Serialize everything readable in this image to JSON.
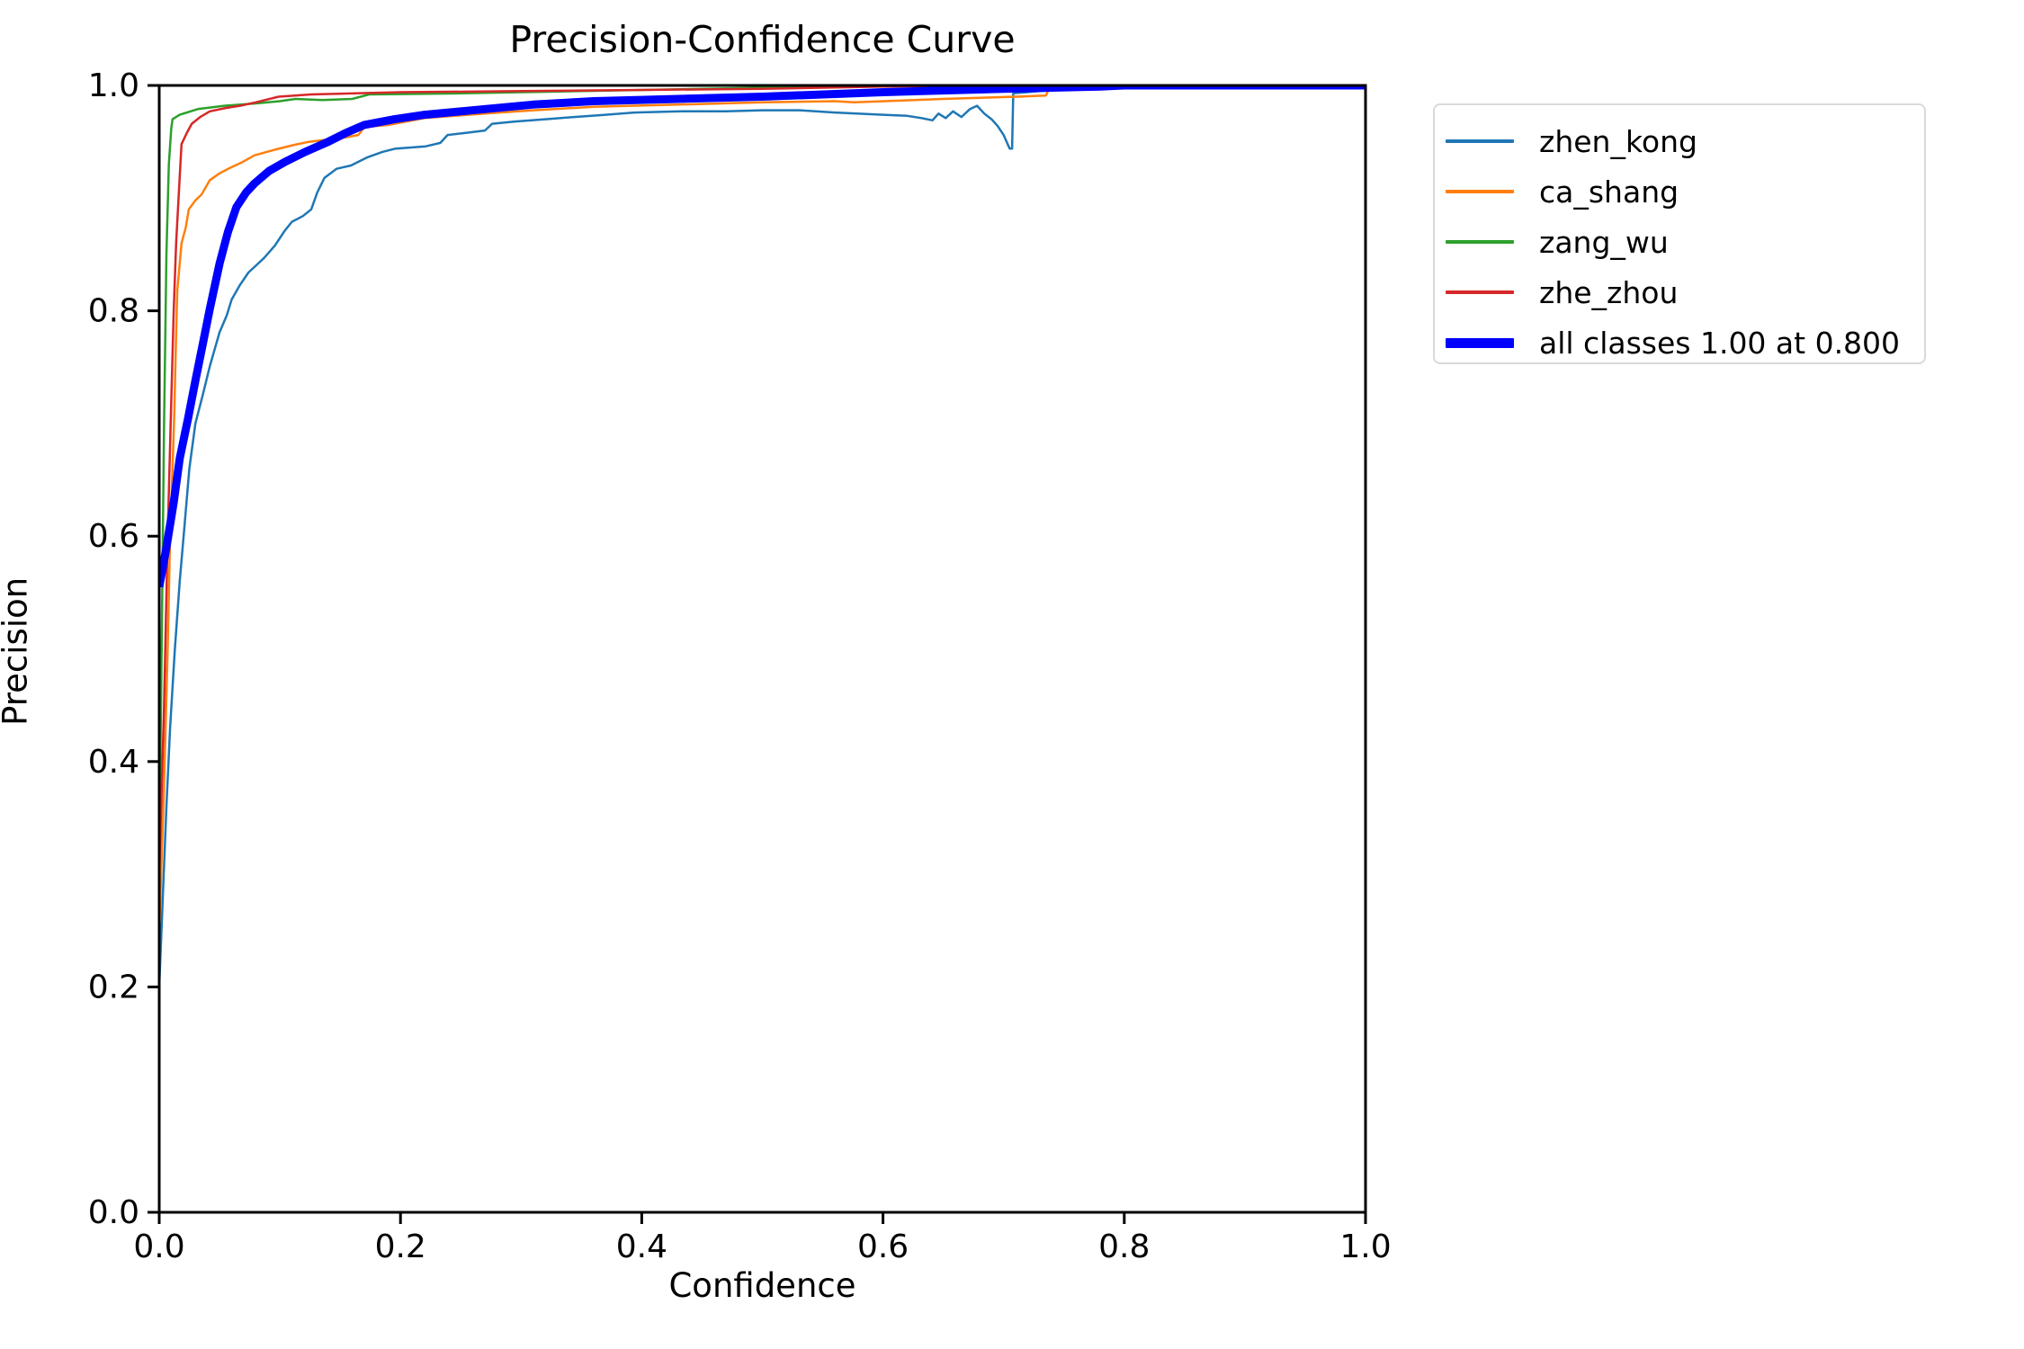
{
  "chart_data": {
    "type": "line",
    "title": "Precision-Confidence Curve",
    "xlabel": "Confidence",
    "ylabel": "Precision",
    "xlim": [
      0.0,
      1.0
    ],
    "ylim": [
      0.0,
      1.0
    ],
    "grid": false,
    "legend_position": "outside upper right",
    "x_tick_labels": [
      "0.0",
      "0.2",
      "0.4",
      "0.6",
      "0.8",
      "1.0"
    ],
    "y_tick_labels": [
      "0.0",
      "0.2",
      "0.4",
      "0.6",
      "0.8",
      "1.0"
    ],
    "series": [
      {
        "name": "zhen_kong",
        "color": "#1f77b4",
        "line_width": 2.5,
        "points": [
          [
            0,
            0.2
          ],
          [
            0.003,
            0.28
          ],
          [
            0.006,
            0.36
          ],
          [
            0.009,
            0.43
          ],
          [
            0.013,
            0.5
          ],
          [
            0.017,
            0.56
          ],
          [
            0.021,
            0.61
          ],
          [
            0.025,
            0.66
          ],
          [
            0.03,
            0.7
          ],
          [
            0.036,
            0.725
          ],
          [
            0.042,
            0.751
          ],
          [
            0.05,
            0.781
          ],
          [
            0.056,
            0.796
          ],
          [
            0.06,
            0.81
          ],
          [
            0.067,
            0.823
          ],
          [
            0.074,
            0.834
          ],
          [
            0.08,
            0.84
          ],
          [
            0.087,
            0.847
          ],
          [
            0.096,
            0.858
          ],
          [
            0.104,
            0.871
          ],
          [
            0.11,
            0.879
          ],
          [
            0.119,
            0.884
          ],
          [
            0.126,
            0.89
          ],
          [
            0.131,
            0.905
          ],
          [
            0.137,
            0.918
          ],
          [
            0.147,
            0.926
          ],
          [
            0.159,
            0.929
          ],
          [
            0.172,
            0.936
          ],
          [
            0.185,
            0.941
          ],
          [
            0.196,
            0.944
          ],
          [
            0.21,
            0.945
          ],
          [
            0.221,
            0.946
          ],
          [
            0.233,
            0.949
          ],
          [
            0.239,
            0.956
          ],
          [
            0.255,
            0.958
          ],
          [
            0.27,
            0.96
          ],
          [
            0.276,
            0.966
          ],
          [
            0.295,
            0.968
          ],
          [
            0.32,
            0.97
          ],
          [
            0.344,
            0.972
          ],
          [
            0.37,
            0.974
          ],
          [
            0.394,
            0.976
          ],
          [
            0.433,
            0.977
          ],
          [
            0.47,
            0.977
          ],
          [
            0.5,
            0.978
          ],
          [
            0.53,
            0.978
          ],
          [
            0.56,
            0.976
          ],
          [
            0.6,
            0.974
          ],
          [
            0.62,
            0.973
          ],
          [
            0.632,
            0.971
          ],
          [
            0.641,
            0.969
          ],
          [
            0.646,
            0.975
          ],
          [
            0.652,
            0.971
          ],
          [
            0.658,
            0.977
          ],
          [
            0.665,
            0.972
          ],
          [
            0.672,
            0.979
          ],
          [
            0.678,
            0.982
          ],
          [
            0.684,
            0.975
          ],
          [
            0.69,
            0.97
          ],
          [
            0.695,
            0.964
          ],
          [
            0.7,
            0.956
          ],
          [
            0.705,
            0.944
          ],
          [
            0.707,
            0.944
          ],
          [
            0.708,
            0.993
          ],
          [
            0.73,
            0.995
          ],
          [
            0.76,
            0.997
          ],
          [
            0.8,
            1.0
          ],
          [
            1.0,
            1.0
          ]
        ]
      },
      {
        "name": "ca_shang",
        "color": "#ff7f0e",
        "line_width": 2.5,
        "points": [
          [
            0,
            0.25
          ],
          [
            0.004,
            0.38
          ],
          [
            0.007,
            0.5
          ],
          [
            0.009,
            0.6
          ],
          [
            0.011,
            0.66
          ],
          [
            0.0125,
            0.71
          ],
          [
            0.014,
            0.78
          ],
          [
            0.015,
            0.818
          ],
          [
            0.0185,
            0.86
          ],
          [
            0.022,
            0.874
          ],
          [
            0.0245,
            0.89
          ],
          [
            0.03,
            0.898
          ],
          [
            0.035,
            0.903
          ],
          [
            0.042,
            0.916
          ],
          [
            0.05,
            0.922
          ],
          [
            0.059,
            0.927
          ],
          [
            0.069,
            0.932
          ],
          [
            0.079,
            0.938
          ],
          [
            0.096,
            0.943
          ],
          [
            0.111,
            0.947
          ],
          [
            0.124,
            0.95
          ],
          [
            0.14,
            0.952
          ],
          [
            0.155,
            0.954
          ],
          [
            0.165,
            0.956
          ],
          [
            0.17,
            0.963
          ],
          [
            0.19,
            0.965
          ],
          [
            0.22,
            0.971
          ],
          [
            0.27,
            0.975
          ],
          [
            0.31,
            0.978
          ],
          [
            0.36,
            0.981
          ],
          [
            0.43,
            0.983
          ],
          [
            0.5,
            0.985
          ],
          [
            0.56,
            0.986
          ],
          [
            0.576,
            0.985
          ],
          [
            0.65,
            0.988
          ],
          [
            0.71,
            0.99
          ],
          [
            0.735,
            0.991
          ],
          [
            0.739,
            1.0
          ],
          [
            1.0,
            1.0
          ]
        ]
      },
      {
        "name": "zang_wu",
        "color": "#2ca02c",
        "line_width": 2.5,
        "points": [
          [
            0,
            0.32
          ],
          [
            0.002,
            0.5
          ],
          [
            0.004,
            0.7
          ],
          [
            0.006,
            0.85
          ],
          [
            0.008,
            0.93
          ],
          [
            0.01,
            0.962
          ],
          [
            0.011,
            0.97
          ],
          [
            0.017,
            0.974
          ],
          [
            0.032,
            0.979
          ],
          [
            0.054,
            0.982
          ],
          [
            0.08,
            0.984
          ],
          [
            0.1,
            0.986
          ],
          [
            0.113,
            0.988
          ],
          [
            0.135,
            0.987
          ],
          [
            0.16,
            0.988
          ],
          [
            0.174,
            0.992
          ],
          [
            0.25,
            0.993
          ],
          [
            0.35,
            0.995
          ],
          [
            0.45,
            0.997
          ],
          [
            0.55,
            0.999
          ],
          [
            0.64,
            1.0
          ],
          [
            1.0,
            1.0
          ]
        ]
      },
      {
        "name": "zhe_zhou",
        "color": "#d62728",
        "line_width": 2.5,
        "points": [
          [
            0,
            0.3
          ],
          [
            0.004,
            0.45
          ],
          [
            0.007,
            0.6
          ],
          [
            0.01,
            0.72
          ],
          [
            0.012,
            0.8
          ],
          [
            0.014,
            0.86
          ],
          [
            0.016,
            0.9
          ],
          [
            0.0185,
            0.948
          ],
          [
            0.023,
            0.958
          ],
          [
            0.027,
            0.966
          ],
          [
            0.034,
            0.972
          ],
          [
            0.042,
            0.977
          ],
          [
            0.055,
            0.98
          ],
          [
            0.067,
            0.982
          ],
          [
            0.08,
            0.985
          ],
          [
            0.099,
            0.99
          ],
          [
            0.126,
            0.992
          ],
          [
            0.2,
            0.994
          ],
          [
            0.3,
            0.995
          ],
          [
            0.4,
            0.996
          ],
          [
            0.5,
            0.997
          ],
          [
            0.6,
            0.999
          ],
          [
            0.68,
            1.0
          ],
          [
            1.0,
            1.0
          ]
        ]
      },
      {
        "name": "all classes 1.00 at 0.800",
        "color": "#0000ff",
        "line_width": 9,
        "points": [
          [
            0,
            0.555
          ],
          [
            0.006,
            0.59
          ],
          [
            0.012,
            0.63
          ],
          [
            0.017,
            0.669
          ],
          [
            0.024,
            0.705
          ],
          [
            0.03,
            0.738
          ],
          [
            0.036,
            0.77
          ],
          [
            0.042,
            0.802
          ],
          [
            0.05,
            0.842
          ],
          [
            0.057,
            0.87
          ],
          [
            0.064,
            0.892
          ],
          [
            0.072,
            0.905
          ],
          [
            0.079,
            0.913
          ],
          [
            0.091,
            0.924
          ],
          [
            0.104,
            0.932
          ],
          [
            0.121,
            0.941
          ],
          [
            0.14,
            0.95
          ],
          [
            0.155,
            0.958
          ],
          [
            0.17,
            0.965
          ],
          [
            0.195,
            0.97
          ],
          [
            0.22,
            0.974
          ],
          [
            0.27,
            0.979
          ],
          [
            0.31,
            0.983
          ],
          [
            0.36,
            0.986
          ],
          [
            0.43,
            0.988
          ],
          [
            0.5,
            0.99
          ],
          [
            0.6,
            0.994
          ],
          [
            0.7,
            0.997
          ],
          [
            0.78,
            0.999
          ],
          [
            0.8,
            1.0
          ],
          [
            1.0,
            1.0
          ]
        ]
      }
    ],
    "legend": {
      "entries": [
        {
          "label": "zhen_kong",
          "color": "#1f77b4",
          "thick": false
        },
        {
          "label": "ca_shang",
          "color": "#ff7f0e",
          "thick": false
        },
        {
          "label": "zang_wu",
          "color": "#2ca02c",
          "thick": false
        },
        {
          "label": "zhe_zhou",
          "color": "#d62728",
          "thick": false
        },
        {
          "label": "all classes 1.00 at 0.800",
          "color": "#0000ff",
          "thick": true
        }
      ]
    },
    "axis_color": "#000000"
  }
}
